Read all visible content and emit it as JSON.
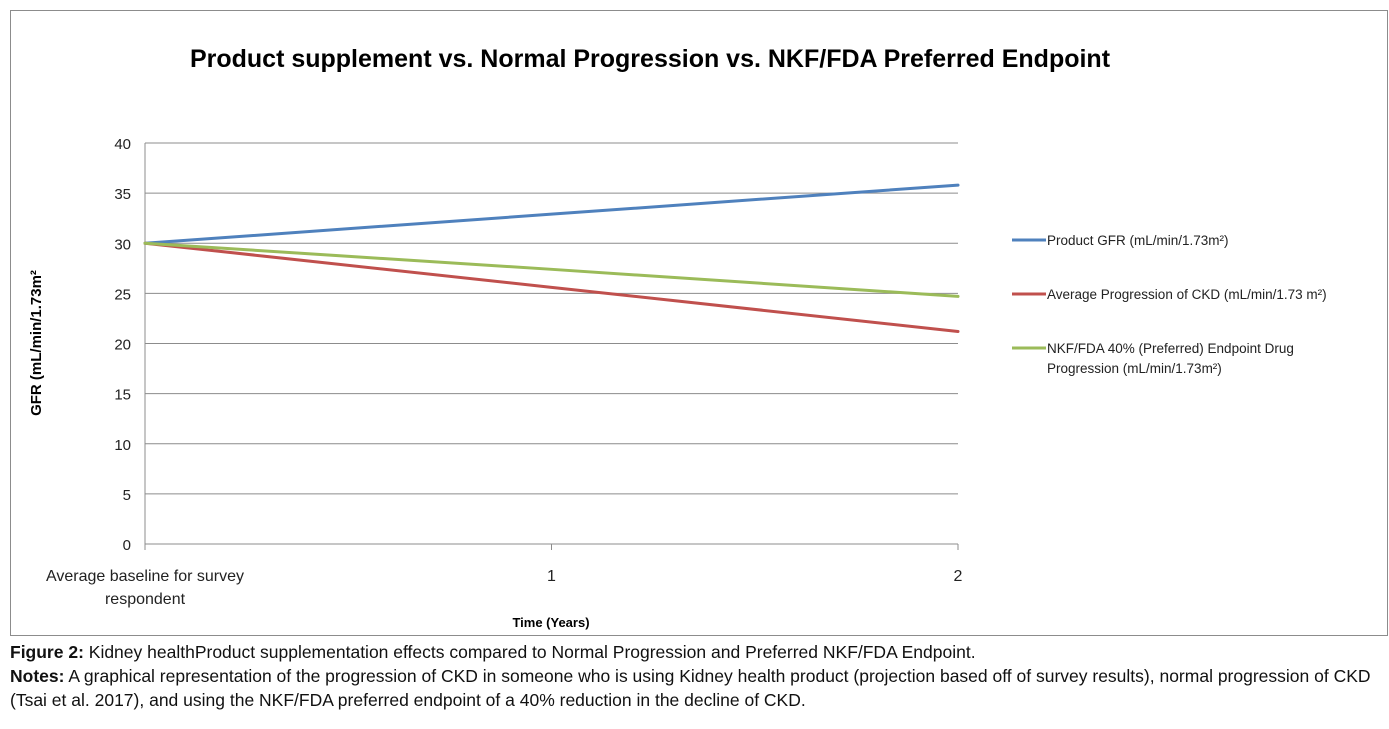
{
  "chart_data": {
    "type": "line",
    "title": "Product supplement vs. Normal Progression vs. NKF/FDA Preferred Endpoint",
    "xlabel": "Time (Years)",
    "ylabel": "GFR (mL/min/1.73m²",
    "categories": [
      "Average baseline for survey respondent",
      "1",
      "2"
    ],
    "category_lines": [
      [
        "Average baseline for survey",
        "respondent"
      ],
      [
        "1"
      ],
      [
        "2"
      ]
    ],
    "ylim": [
      0,
      40
    ],
    "yticks": [
      0,
      5,
      10,
      15,
      20,
      25,
      30,
      35,
      40
    ],
    "grid": true,
    "legend_position": "right",
    "series": [
      {
        "name": "Product  GFR (mL/min/1.73m²)",
        "legend_lines": [
          "Product  GFR (mL/min/1.73m²)"
        ],
        "color": "#4f81bd",
        "values": [
          30,
          32.9,
          35.8
        ]
      },
      {
        "name": "Average Progression of CKD (mL/min/1.73 m²)",
        "legend_lines": [
          "Average Progression of CKD (mL/min/1.73 m²)"
        ],
        "color": "#c0504d",
        "values": [
          30,
          25.6,
          21.2
        ]
      },
      {
        "name": "NKF/FDA 40% (Preferred) Endpoint Drug Progression (mL/min/1.73m²)",
        "legend_lines": [
          "NKF/FDA 40% (Preferred) Endpoint Drug",
          "Progression (mL/min/1.73m²)"
        ],
        "color": "#9bbb59",
        "values": [
          30,
          27.4,
          24.7
        ]
      }
    ]
  },
  "caption": {
    "figure_label": "Figure 2:",
    "figure_text": " Kidney healthProduct supplementation effects compared to Normal Progression and Preferred NKF/FDA Endpoint.",
    "notes_label": "Notes:",
    "notes_text": " A graphical representation of the progression of CKD in someone who is using Kidney health product (projection based off of survey results), normal progression of CKD (Tsai et al. 2017), and using the NKF/FDA preferred endpoint of a 40% reduction in the decline of CKD."
  }
}
